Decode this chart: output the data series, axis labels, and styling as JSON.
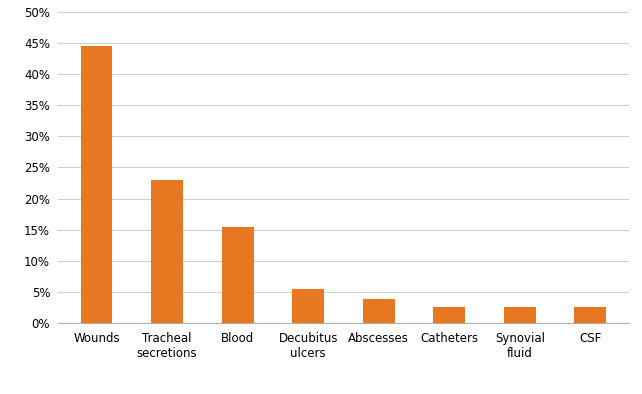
{
  "categories": [
    "Wounds",
    "Tracheal\nsecretions",
    "Blood",
    "Decubitus\nulcers",
    "Abscesses",
    "Catheters",
    "Synovial\nfluid",
    "CSF"
  ],
  "values": [
    0.445,
    0.23,
    0.155,
    0.055,
    0.038,
    0.026,
    0.026,
    0.026
  ],
  "bar_color": "#E87722",
  "ylim": [
    0,
    0.5
  ],
  "yticks": [
    0.0,
    0.05,
    0.1,
    0.15,
    0.2,
    0.25,
    0.3,
    0.35,
    0.4,
    0.45,
    0.5
  ],
  "background_color": "#ffffff",
  "grid_color": "#d0d0d0",
  "tick_label_fontsize": 8.5,
  "bar_width": 0.45
}
